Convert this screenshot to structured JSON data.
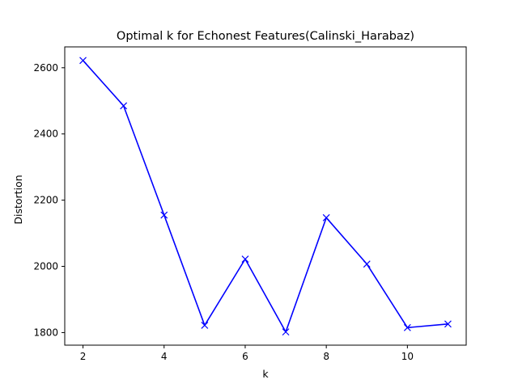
{
  "chart_data": {
    "type": "line",
    "title": "Optimal k for Echonest Features(Calinski_Harabaz)",
    "xlabel": "k",
    "ylabel": "Distortion",
    "xlim": [
      1.55,
      11.45
    ],
    "ylim": [
      1762,
      2663
    ],
    "xticks": [
      2,
      4,
      6,
      8,
      10
    ],
    "yticks": [
      1800,
      2000,
      2200,
      2400,
      2600
    ],
    "grid": false,
    "series": [
      {
        "color": "#0000ff",
        "marker": "x",
        "x": [
          2,
          3,
          4,
          5,
          6,
          7,
          8,
          9,
          10,
          11
        ],
        "y": [
          2622,
          2485,
          2155,
          1822,
          2022,
          1802,
          2147,
          2007,
          1815,
          1826
        ]
      }
    ]
  }
}
